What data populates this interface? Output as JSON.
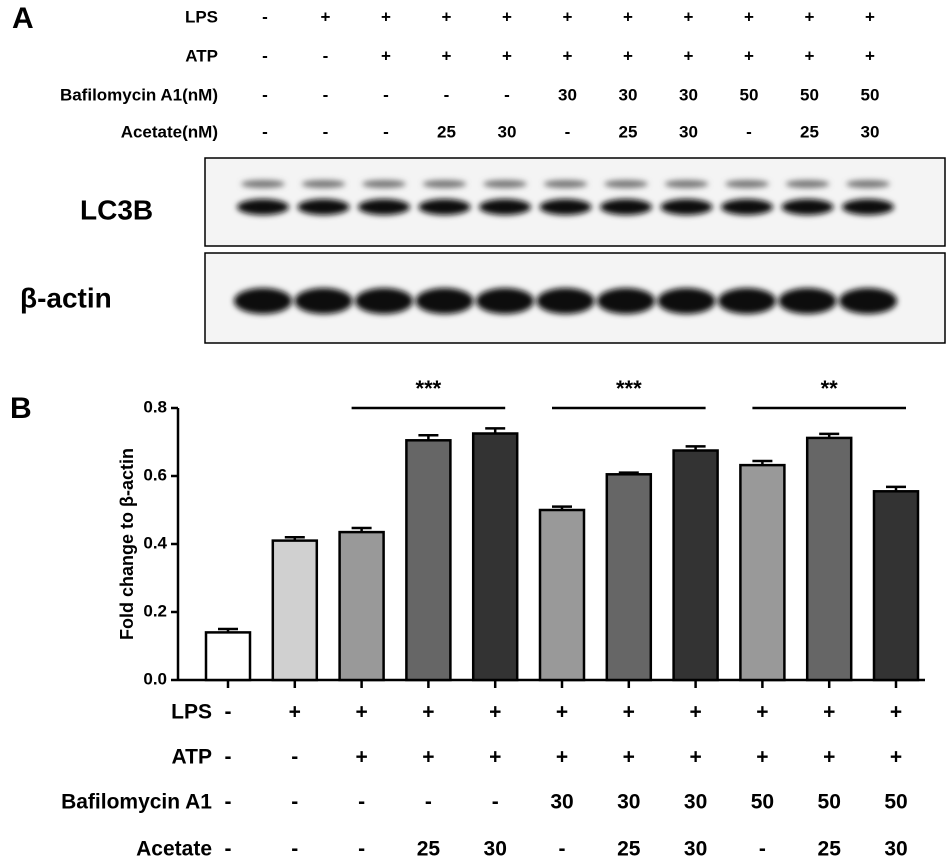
{
  "panel_a": {
    "label": "A",
    "conditions": [
      {
        "name": "LPS",
        "values": [
          "-",
          "+",
          "+",
          "+",
          "+",
          "+",
          "+",
          "+",
          "+",
          "+",
          "+"
        ]
      },
      {
        "name": "ATP",
        "values": [
          "-",
          "-",
          "+",
          "+",
          "+",
          "+",
          "+",
          "+",
          "+",
          "+",
          "+"
        ]
      },
      {
        "name": "Bafilomycin A1(nM)",
        "values": [
          "-",
          "-",
          "-",
          "-",
          "-",
          "30",
          "30",
          "30",
          "50",
          "50",
          "50"
        ]
      },
      {
        "name": "Acetate(nM)",
        "values": [
          "-",
          "-",
          "-",
          "25",
          "30",
          "-",
          "25",
          "30",
          "-",
          "25",
          "30"
        ]
      }
    ],
    "blots": [
      "LC3B",
      "β-actin"
    ]
  },
  "chart_data": {
    "type": "bar",
    "panel_label": "B",
    "ylabel": "Fold change to β-actin",
    "categories": [
      null,
      null,
      null,
      null,
      null,
      null,
      null,
      null,
      null,
      null,
      null
    ],
    "values": [
      0.14,
      0.41,
      0.435,
      0.705,
      0.725,
      0.5,
      0.605,
      0.675,
      0.632,
      0.712,
      0.555
    ],
    "errors": [
      0.01,
      0.01,
      0.012,
      0.015,
      0.015,
      0.01,
      0.005,
      0.012,
      0.012,
      0.012,
      0.013
    ],
    "colors": [
      "#ffffff",
      "#d0d0d0",
      "#999999",
      "#666666",
      "#333333",
      "#999999",
      "#666666",
      "#333333",
      "#999999",
      "#666666",
      "#333333"
    ],
    "ylim": [
      0,
      0.8
    ],
    "yticks": [
      {
        "value": 0,
        "label": "0.0"
      },
      0.2,
      0.4,
      0.6,
      0.8
    ],
    "annotations": [
      {
        "text": "***",
        "from": 2,
        "to": 4,
        "y": 0.8
      },
      {
        "text": "***",
        "from": 5,
        "to": 7,
        "y": 0.8
      },
      {
        "text": "**",
        "from": 8,
        "to": 10,
        "y": 0.8
      }
    ],
    "conditions": [
      {
        "name": "LPS",
        "values": [
          "-",
          "+",
          "+",
          "+",
          "+",
          "+",
          "+",
          "+",
          "+",
          "+",
          "+"
        ]
      },
      {
        "name": "ATP",
        "values": [
          "-",
          "-",
          "+",
          "+",
          "+",
          "+",
          "+",
          "+",
          "+",
          "+",
          "+"
        ]
      },
      {
        "name": "Bafilomycin A1",
        "values": [
          "-",
          "-",
          "-",
          "-",
          "-",
          "30",
          "30",
          "30",
          "50",
          "50",
          "50"
        ]
      },
      {
        "name": "Acetate",
        "values": [
          "-",
          "-",
          "-",
          "25",
          "30",
          "-",
          "25",
          "30",
          "-",
          "25",
          "30"
        ]
      }
    ]
  }
}
